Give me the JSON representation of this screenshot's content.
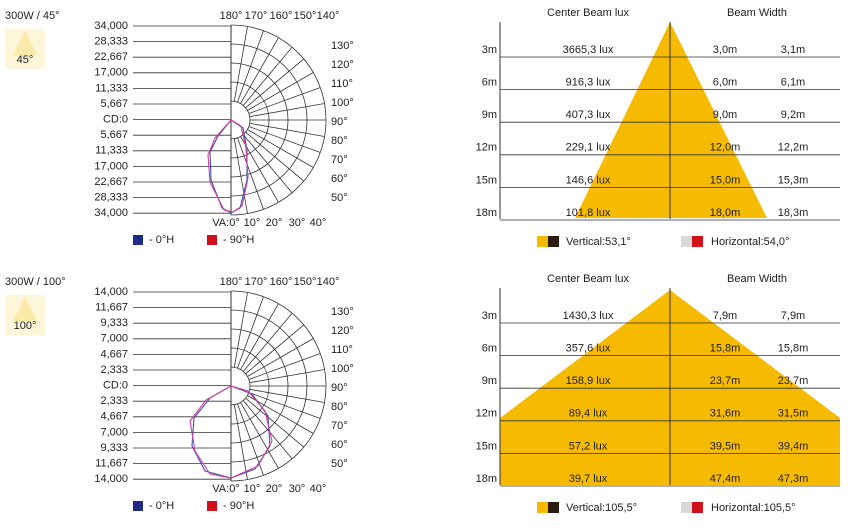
{
  "panels": [
    {
      "title": "300W / 45°",
      "badge": "45°",
      "cd_labels": [
        "34,000",
        "28,333",
        "22,667",
        "17,000",
        "11,333",
        "5,667",
        "CD:0",
        "5,667",
        "11,333",
        "17,000",
        "22,667",
        "28,333",
        "34,000"
      ],
      "top_angles": [
        "180°",
        "170°",
        "160°",
        "150°",
        "140°"
      ],
      "right_angles": [
        "130°",
        "120°",
        "110°",
        "100°",
        "90°",
        "80°",
        "70°",
        "60°",
        "50°"
      ],
      "bottom_angles": [
        "VA:0°",
        "10°",
        "20°",
        "30°",
        "40°"
      ],
      "legend": [
        "- 0°H",
        "- 90°H"
      ],
      "table": {
        "header": [
          "Center Beam lux",
          "Beam Width"
        ],
        "rows": [
          [
            "3m",
            "3665,3 lux",
            "3,0m",
            "3,1m"
          ],
          [
            "6m",
            "916,3 lux",
            "6,0m",
            "6,1m"
          ],
          [
            "9m",
            "407,3 lux",
            "9,0m",
            "9,2m"
          ],
          [
            "12m",
            "229,1 lux",
            "12,0m",
            "12,2m"
          ],
          [
            "15m",
            "146,6 lux",
            "15,0m",
            "15,3m"
          ],
          [
            "18m",
            "101,8 lux",
            "18,0m",
            "18,3m"
          ]
        ]
      },
      "beam_legend": [
        "Vertical:53,1°",
        "Horizontal:54,0°"
      ]
    },
    {
      "title": "300W / 100°",
      "badge": "100°",
      "cd_labels": [
        "14,000",
        "11,667",
        "9,333",
        "7,000",
        "4,667",
        "2,333",
        "CD:0",
        "2,333",
        "4,667",
        "7,000",
        "9,333",
        "11,667",
        "14,000"
      ],
      "top_angles": [
        "180°",
        "170°",
        "160°",
        "150°",
        "140°"
      ],
      "right_angles": [
        "130°",
        "120°",
        "110°",
        "100°",
        "90°",
        "80°",
        "70°",
        "60°",
        "50°"
      ],
      "bottom_angles": [
        "VA:0°",
        "10°",
        "20°",
        "30°",
        "40°"
      ],
      "legend": [
        "- 0°H",
        "- 90°H"
      ],
      "table": {
        "header": [
          "Center Beam lux",
          "Beam Width"
        ],
        "rows": [
          [
            "3m",
            "1430,3 lux",
            "7,9m",
            "7,9m"
          ],
          [
            "6m",
            "357,6 lux",
            "15,8m",
            "15,8m"
          ],
          [
            "9m",
            "158,9 lux",
            "23,7m",
            "23,7m"
          ],
          [
            "12m",
            "89,4 lux",
            "31,6m",
            "31,5m"
          ],
          [
            "15m",
            "57,2 lux",
            "39,5m",
            "39,4m"
          ],
          [
            "18m",
            "39,7 lux",
            "47,4m",
            "47,3m"
          ]
        ]
      },
      "beam_legend": [
        "Vertical:105,5°",
        "Horizontal:105,5°"
      ]
    }
  ]
}
